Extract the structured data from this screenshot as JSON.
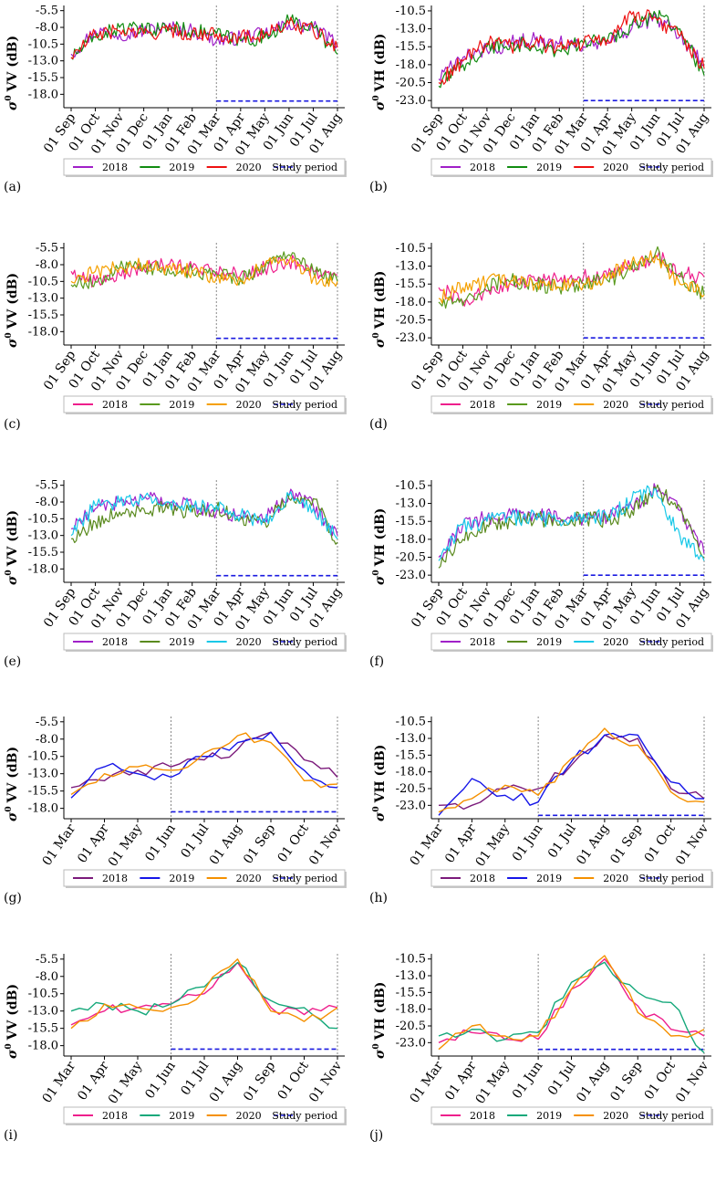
{
  "chart_data": [
    {
      "id": "a",
      "type": "line",
      "panel_label": "(a)",
      "ylabel": "VV (dB)",
      "yticks": [
        "-5.5",
        "-8.0",
        "-10.5",
        "-13.0",
        "-15.5",
        "-18.0"
      ],
      "ylim": [
        -20.0,
        -5.0
      ],
      "xticks": [
        "01 Sep",
        "01 Oct",
        "01 Nov",
        "01 Dec",
        "01 Jan",
        "01 Feb",
        "01 Mar",
        "01 Apr",
        "01 May",
        "01 Jun",
        "01 Jul",
        "01 Aug"
      ],
      "study_start_tick": 6,
      "study_end_tick": 11,
      "study_level": -19.0,
      "series": [
        {
          "name": "2018",
          "color": "#a020c8",
          "values": [
            -12.0,
            -8.5,
            -9.0,
            -8.5,
            -8.0,
            -8.5,
            -10.0,
            -9.5,
            -9.0,
            -7.5,
            -8.0,
            -10.5
          ]
        },
        {
          "name": "2019",
          "color": "#118c11",
          "values": [
            -12.5,
            -9.5,
            -8.0,
            -8.5,
            -8.0,
            -8.5,
            -9.0,
            -10.0,
            -9.5,
            -7.0,
            -8.0,
            -12.0
          ]
        },
        {
          "name": "2020",
          "color": "#ee1111",
          "values": [
            -12.5,
            -9.0,
            -8.5,
            -9.0,
            -8.5,
            -9.0,
            -9.0,
            -9.5,
            -9.0,
            -7.5,
            -8.5,
            -11.0
          ]
        }
      ],
      "legend": [
        "2018",
        "2019",
        "2020",
        "Study period"
      ]
    },
    {
      "id": "b",
      "type": "line",
      "panel_label": "(b)",
      "ylabel": "VH (dB)",
      "yticks": [
        "-10.5",
        "-13.0",
        "-15.5",
        "-18.0",
        "-20.5",
        "-23.0"
      ],
      "ylim": [
        -24.0,
        -10.0
      ],
      "xticks": [
        "01 Sep",
        "01 Oct",
        "01 Nov",
        "01 Dec",
        "01 Jan",
        "01 Feb",
        "01 Mar",
        "01 Apr",
        "01 May",
        "01 Jun",
        "01 Jul",
        "01 Aug"
      ],
      "study_start_tick": 6,
      "study_end_tick": 11,
      "study_level": -23.0,
      "series": [
        {
          "name": "2018",
          "color": "#a020c8",
          "values": [
            -20.0,
            -17.0,
            -16.0,
            -15.0,
            -14.5,
            -15.0,
            -15.5,
            -15.0,
            -13.0,
            -11.5,
            -14.0,
            -18.0
          ]
        },
        {
          "name": "2019",
          "color": "#118c11",
          "values": [
            -21.0,
            -18.0,
            -15.5,
            -15.0,
            -15.5,
            -16.0,
            -15.0,
            -14.5,
            -12.5,
            -11.0,
            -13.0,
            -19.5
          ]
        },
        {
          "name": "2020",
          "color": "#ee1111",
          "values": [
            -20.5,
            -17.5,
            -15.0,
            -15.5,
            -15.0,
            -15.5,
            -15.0,
            -14.5,
            -11.0,
            -11.5,
            -14.0,
            -18.5
          ]
        }
      ],
      "legend": [
        "2018",
        "2019",
        "2020",
        "Study period"
      ]
    },
    {
      "id": "c",
      "type": "line",
      "panel_label": "(c)",
      "ylabel": "VV (dB)",
      "yticks": [
        "-5.5",
        "-8.0",
        "-10.5",
        "-13.0",
        "-15.5",
        "-18.0"
      ],
      "ylim": [
        -20.0,
        -5.0
      ],
      "xticks": [
        "01 Sep",
        "01 Oct",
        "01 Nov",
        "01 Dec",
        "01 Jan",
        "01 Feb",
        "01 Mar",
        "01 Apr",
        "01 May",
        "01 Jun",
        "01 Jul",
        "01 Aug"
      ],
      "study_start_tick": 6,
      "study_end_tick": 11,
      "study_level": -19.0,
      "series": [
        {
          "name": "2018",
          "color": "#ee1f8c",
          "values": [
            -9.0,
            -10.5,
            -9.5,
            -8.5,
            -8.0,
            -8.5,
            -9.0,
            -9.5,
            -8.5,
            -7.5,
            -9.0,
            -9.5
          ]
        },
        {
          "name": "2019",
          "color": "#5a9a1e",
          "values": [
            -11.0,
            -10.5,
            -8.5,
            -8.5,
            -8.5,
            -9.0,
            -9.5,
            -10.0,
            -8.5,
            -6.5,
            -9.0,
            -10.5
          ]
        },
        {
          "name": "2020",
          "color": "#f5a000",
          "values": [
            -10.5,
            -9.0,
            -8.5,
            -8.0,
            -8.5,
            -9.0,
            -10.0,
            -10.5,
            -8.0,
            -7.5,
            -10.0,
            -10.5
          ]
        }
      ],
      "legend": [
        "2018",
        "2019",
        "2020",
        "Study period"
      ]
    },
    {
      "id": "d",
      "type": "line",
      "panel_label": "(d)",
      "ylabel": "VH (dB)",
      "yticks": [
        "-10.5",
        "-13.0",
        "-15.5",
        "-18.0",
        "-20.5",
        "-23.0"
      ],
      "ylim": [
        -24.0,
        -10.0
      ],
      "xticks": [
        "01 Sep",
        "01 Oct",
        "01 Nov",
        "01 Dec",
        "01 Jan",
        "01 Feb",
        "01 Mar",
        "01 Apr",
        "01 May",
        "01 Jun",
        "01 Jul",
        "01 Aug"
      ],
      "study_start_tick": 6,
      "study_end_tick": 11,
      "study_level": -23.0,
      "series": [
        {
          "name": "2018",
          "color": "#ee1f8c",
          "values": [
            -16.0,
            -18.0,
            -16.5,
            -15.5,
            -15.0,
            -15.0,
            -14.5,
            -14.5,
            -13.0,
            -11.5,
            -14.0,
            -14.5
          ]
        },
        {
          "name": "2019",
          "color": "#5a9a1e",
          "values": [
            -18.0,
            -18.5,
            -15.5,
            -15.0,
            -15.5,
            -16.0,
            -15.5,
            -15.0,
            -13.5,
            -11.0,
            -14.5,
            -17.0
          ]
        },
        {
          "name": "2020",
          "color": "#f5a000",
          "values": [
            -17.5,
            -16.0,
            -15.0,
            -15.0,
            -15.5,
            -16.0,
            -15.5,
            -14.5,
            -12.5,
            -11.5,
            -15.5,
            -17.0
          ]
        }
      ],
      "legend": [
        "2018",
        "2019",
        "2020",
        "Study period"
      ]
    },
    {
      "id": "e",
      "type": "line",
      "panel_label": "(e)",
      "ylabel": "VV (dB)",
      "yticks": [
        "-5.5",
        "-8.0",
        "-10.5",
        "-13.0",
        "-15.5",
        "-18.0"
      ],
      "ylim": [
        -20.0,
        -5.0
      ],
      "xticks": [
        "01 Sep",
        "01 Oct",
        "01 Nov",
        "01 Dec",
        "01 Jan",
        "01 Feb",
        "01 Mar",
        "01 Apr",
        "01 May",
        "01 Jun",
        "01 Jul",
        "01 Aug"
      ],
      "study_start_tick": 6,
      "study_end_tick": 11,
      "study_level": -19.0,
      "series": [
        {
          "name": "2018",
          "color": "#a020c8",
          "values": [
            -12.0,
            -9.0,
            -8.0,
            -7.5,
            -8.0,
            -8.5,
            -9.5,
            -10.0,
            -10.5,
            -7.0,
            -8.5,
            -13.0
          ]
        },
        {
          "name": "2019",
          "color": "#5a8a1e",
          "values": [
            -13.5,
            -11.0,
            -9.5,
            -9.0,
            -9.0,
            -9.5,
            -9.0,
            -10.5,
            -11.0,
            -7.5,
            -7.5,
            -14.0
          ]
        },
        {
          "name": "2020",
          "color": "#18c8e8",
          "values": [
            -13.0,
            -8.5,
            -8.0,
            -7.5,
            -8.0,
            -8.5,
            -8.5,
            -10.0,
            -11.0,
            -7.0,
            -9.0,
            -13.5
          ]
        }
      ],
      "legend": [
        "2018",
        "2019",
        "2020",
        "Study period"
      ]
    },
    {
      "id": "f",
      "type": "line",
      "panel_label": "(f)",
      "ylabel": "VH (dB)",
      "yticks": [
        "-10.5",
        "-13.0",
        "-15.5",
        "-18.0",
        "-20.5",
        "-23.0"
      ],
      "ylim": [
        -24.0,
        -10.0
      ],
      "xticks": [
        "01 Sep",
        "01 Oct",
        "01 Nov",
        "01 Dec",
        "01 Jan",
        "01 Feb",
        "01 Mar",
        "01 Apr",
        "01 May",
        "01 Jun",
        "01 Jul",
        "01 Aug"
      ],
      "study_start_tick": 6,
      "study_end_tick": 11,
      "study_level": -23.0,
      "series": [
        {
          "name": "2018",
          "color": "#a020c8",
          "values": [
            -20.5,
            -16.0,
            -15.0,
            -14.5,
            -14.5,
            -15.0,
            -15.0,
            -15.0,
            -13.5,
            -11.0,
            -14.0,
            -20.0
          ]
        },
        {
          "name": "2019",
          "color": "#5a8a1e",
          "values": [
            -22.0,
            -18.0,
            -16.0,
            -15.5,
            -15.0,
            -16.0,
            -15.0,
            -15.5,
            -14.0,
            -11.0,
            -13.5,
            -20.5
          ]
        },
        {
          "name": "2020",
          "color": "#18c8e8",
          "values": [
            -21.0,
            -16.0,
            -15.5,
            -15.0,
            -15.0,
            -15.5,
            -14.5,
            -15.0,
            -12.5,
            -11.0,
            -17.5,
            -21.0
          ]
        }
      ],
      "legend": [
        "2018",
        "2019",
        "2020",
        "Study period"
      ]
    },
    {
      "id": "g",
      "type": "line",
      "panel_label": "(g)",
      "ylabel": "VV (dB)",
      "yticks": [
        "-5.5",
        "-8.0",
        "-10.5",
        "-13.0",
        "-15.5",
        "-18.0"
      ],
      "ylim": [
        -19.5,
        -5.0
      ],
      "xticks": [
        "01 Mar",
        "01 Apr",
        "01 May",
        "01 Jun",
        "01 Jul",
        "01 Aug",
        "01 Sep",
        "01 Oct",
        "01 Nov"
      ],
      "study_start_tick": 3,
      "study_end_tick": 8,
      "study_level": -18.5,
      "series": [
        {
          "name": "2018",
          "color": "#7b1a7b",
          "values": [
            -15.0,
            -14.0,
            -12.5,
            -12.0,
            -11.0,
            -9.5,
            -7.0,
            -11.0,
            -13.5
          ]
        },
        {
          "name": "2019",
          "color": "#1515e8",
          "values": [
            -16.5,
            -12.0,
            -13.0,
            -13.5,
            -10.5,
            -8.5,
            -7.0,
            -12.5,
            -15.0
          ]
        },
        {
          "name": "2020",
          "color": "#f59000",
          "values": [
            -16.0,
            -13.0,
            -12.0,
            -12.5,
            -10.0,
            -7.5,
            -8.5,
            -14.0,
            -14.5
          ]
        }
      ],
      "legend": [
        "2018",
        "2019",
        "2020",
        "Study period"
      ]
    },
    {
      "id": "h",
      "type": "line",
      "panel_label": "(h)",
      "ylabel": "VH (dB)",
      "yticks": [
        "-10.5",
        "-13.0",
        "-15.5",
        "-18.0",
        "-20.5",
        "-23.0"
      ],
      "ylim": [
        -25.0,
        -10.0
      ],
      "xticks": [
        "01 Mar",
        "01 Apr",
        "01 May",
        "01 Jun",
        "01 Jul",
        "01 Aug",
        "01 Sep",
        "01 Oct",
        "01 Nov"
      ],
      "study_start_tick": 3,
      "study_end_tick": 8,
      "study_level": -24.5,
      "series": [
        {
          "name": "2018",
          "color": "#7b1a7b",
          "values": [
            -23.0,
            -23.0,
            -20.5,
            -20.5,
            -17.0,
            -12.5,
            -13.0,
            -20.5,
            -22.0
          ]
        },
        {
          "name": "2019",
          "color": "#1515e8",
          "values": [
            -24.5,
            -19.0,
            -21.5,
            -22.5,
            -16.5,
            -12.5,
            -12.5,
            -19.5,
            -22.0
          ]
        },
        {
          "name": "2020",
          "color": "#f59000",
          "values": [
            -24.0,
            -22.0,
            -20.0,
            -21.5,
            -16.0,
            -11.5,
            -14.0,
            -21.0,
            -22.5
          ]
        }
      ],
      "legend": [
        "2018",
        "2019",
        "2020",
        "Study period"
      ]
    },
    {
      "id": "i",
      "type": "line",
      "panel_label": "(i)",
      "ylabel": "VV (dB)",
      "yticks": [
        "-5.5",
        "-8.0",
        "-10.5",
        "-13.0",
        "-15.5",
        "-18.0"
      ],
      "ylim": [
        -19.5,
        -5.0
      ],
      "xticks": [
        "01 Mar",
        "01 Apr",
        "01 May",
        "01 Jun",
        "01 Jul",
        "01 Aug",
        "01 Sep",
        "01 Oct",
        "01 Nov"
      ],
      "study_start_tick": 3,
      "study_end_tick": 8,
      "study_level": -18.5,
      "series": [
        {
          "name": "2018",
          "color": "#ee1f8c",
          "values": [
            -15.0,
            -13.0,
            -12.5,
            -12.0,
            -10.5,
            -6.0,
            -12.5,
            -13.5,
            -12.5
          ]
        },
        {
          "name": "2019",
          "color": "#14a87a",
          "values": [
            -13.0,
            -12.0,
            -13.0,
            -12.0,
            -9.5,
            -6.0,
            -11.5,
            -12.5,
            -15.5
          ]
        },
        {
          "name": "2020",
          "color": "#f59000",
          "values": [
            -15.5,
            -12.0,
            -12.5,
            -12.5,
            -10.0,
            -5.5,
            -13.0,
            -14.5,
            -12.5
          ]
        }
      ],
      "legend": [
        "2018",
        "2019",
        "2020",
        "Study period"
      ]
    },
    {
      "id": "j",
      "type": "line",
      "panel_label": "(j)",
      "ylabel": "VH (dB)",
      "yticks": [
        "-10.5",
        "-13.0",
        "-15.5",
        "-18.0",
        "-20.5",
        "-23.0"
      ],
      "ylim": [
        -25.0,
        -10.0
      ],
      "xticks": [
        "01 Mar",
        "01 Apr",
        "01 May",
        "01 Jun",
        "01 Jul",
        "01 Aug",
        "01 Sep",
        "01 Oct",
        "01 Nov"
      ],
      "study_start_tick": 3,
      "study_end_tick": 8,
      "study_level": -24.0,
      "series": [
        {
          "name": "2018",
          "color": "#ee1f8c",
          "values": [
            -23.0,
            -21.5,
            -22.5,
            -22.5,
            -15.0,
            -10.5,
            -17.5,
            -21.0,
            -22.0
          ]
        },
        {
          "name": "2019",
          "color": "#14a87a",
          "values": [
            -22.0,
            -21.0,
            -22.5,
            -21.5,
            -14.0,
            -11.0,
            -15.5,
            -17.0,
            -24.5
          ]
        },
        {
          "name": "2020",
          "color": "#f59000",
          "values": [
            -24.0,
            -20.5,
            -22.0,
            -22.0,
            -15.0,
            -10.0,
            -18.5,
            -22.0,
            -21.0
          ]
        }
      ],
      "legend": [
        "2018",
        "2019",
        "2020",
        "Study period"
      ]
    }
  ]
}
